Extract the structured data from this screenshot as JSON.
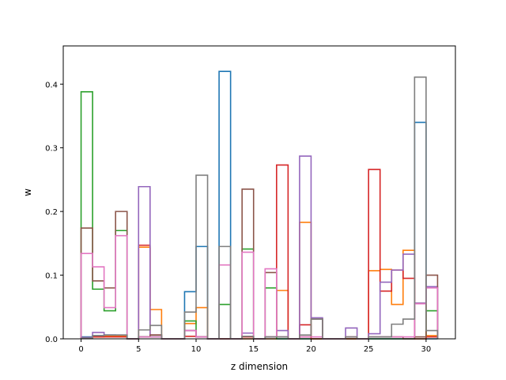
{
  "chart_data": {
    "type": "step",
    "xlabel": "z dimension",
    "ylabel": "w",
    "xlim": [
      -1.55,
      32.55
    ],
    "ylim": [
      0,
      0.46
    ],
    "xticks": [
      0,
      5,
      10,
      15,
      20,
      25,
      30
    ],
    "yticks": [
      0.0,
      0.1,
      0.2,
      0.3,
      0.4
    ],
    "grid": false,
    "legend": "none",
    "bin_edges": [
      0,
      1,
      2,
      3,
      4,
      5,
      6,
      7,
      8,
      9,
      10,
      11,
      12,
      13,
      14,
      15,
      16,
      17,
      18,
      19,
      20,
      21,
      22,
      23,
      24,
      25,
      26,
      27,
      28,
      29,
      30,
      31
    ],
    "series": [
      {
        "color": "#1f77b4",
        "values": [
          0.003,
          0.005,
          0.006,
          0.005,
          0.0,
          0.003,
          0.003,
          0.0,
          0.0,
          0.074,
          0.145,
          0.0,
          0.42,
          0.0,
          0.0,
          0.0,
          0.0,
          0.0,
          0.0,
          0.0,
          0.0,
          0.0,
          0.0,
          0.0,
          0.0,
          0.0,
          0.0,
          0.0,
          0.0,
          0.34,
          0.0
        ]
      },
      {
        "color": "#ff7f0e",
        "values": [
          0.002,
          0.003,
          0.004,
          0.004,
          0.0,
          0.144,
          0.046,
          0.0,
          0.0,
          0.024,
          0.049,
          0.0,
          0.0,
          0.0,
          0.0,
          0.0,
          0.0,
          0.076,
          0.0,
          0.183,
          0.0,
          0.0,
          0.0,
          0.0,
          0.0,
          0.107,
          0.109,
          0.054,
          0.139,
          0.056,
          0.005
        ]
      },
      {
        "color": "#2ca02c",
        "values": [
          0.388,
          0.078,
          0.044,
          0.17,
          0.0,
          0.003,
          0.003,
          0.0,
          0.0,
          0.028,
          0.003,
          0.0,
          0.054,
          0.0,
          0.141,
          0.0,
          0.08,
          0.0,
          0.0,
          0.0,
          0.0,
          0.0,
          0.0,
          0.0,
          0.0,
          0.0,
          0.0,
          0.0,
          0.0,
          0.0,
          0.044
        ]
      },
      {
        "color": "#d62728",
        "values": [
          0.002,
          0.003,
          0.003,
          0.003,
          0.0,
          0.147,
          0.006,
          0.0,
          0.0,
          0.004,
          0.003,
          0.0,
          0.0,
          0.0,
          0.003,
          0.0,
          0.003,
          0.273,
          0.0,
          0.022,
          0.0,
          0.0,
          0.0,
          0.0,
          0.0,
          0.266,
          0.075,
          0.108,
          0.095,
          0.0,
          0.003
        ]
      },
      {
        "color": "#9467bd",
        "values": [
          0.002,
          0.01,
          0.006,
          0.006,
          0.0,
          0.239,
          0.006,
          0.0,
          0.0,
          0.013,
          0.003,
          0.0,
          0.0,
          0.0,
          0.009,
          0.0,
          0.003,
          0.013,
          0.0,
          0.287,
          0.033,
          0.0,
          0.0,
          0.017,
          0.0,
          0.008,
          0.089,
          0.108,
          0.133,
          0.056,
          0.082
        ]
      },
      {
        "color": "#8c564b",
        "values": [
          0.174,
          0.091,
          0.08,
          0.2,
          0.0,
          0.003,
          0.006,
          0.0,
          0.0,
          0.013,
          0.003,
          0.0,
          0.0,
          0.0,
          0.235,
          0.0,
          0.104,
          0.003,
          0.0,
          0.003,
          0.031,
          0.0,
          0.0,
          0.003,
          0.0,
          0.003,
          0.003,
          0.003,
          0.0,
          0.003,
          0.1
        ]
      },
      {
        "color": "#e377c2",
        "values": [
          0.134,
          0.113,
          0.049,
          0.162,
          0.0,
          0.003,
          0.003,
          0.0,
          0.0,
          0.013,
          0.003,
          0.0,
          0.116,
          0.0,
          0.136,
          0.0,
          0.11,
          0.003,
          0.0,
          0.003,
          0.003,
          0.0,
          0.0,
          0.003,
          0.0,
          0.003,
          0.003,
          0.003,
          0.003,
          0.055,
          0.08
        ]
      },
      {
        "color": "#7f7f7f",
        "values": [
          0.001,
          0.005,
          0.006,
          0.006,
          0.0,
          0.014,
          0.021,
          0.0,
          0.0,
          0.042,
          0.257,
          0.0,
          0.145,
          0.0,
          0.004,
          0.0,
          0.003,
          0.003,
          0.0,
          0.006,
          0.031,
          0.0,
          0.0,
          0.003,
          0.0,
          0.003,
          0.003,
          0.023,
          0.031,
          0.411,
          0.013
        ]
      }
    ]
  }
}
